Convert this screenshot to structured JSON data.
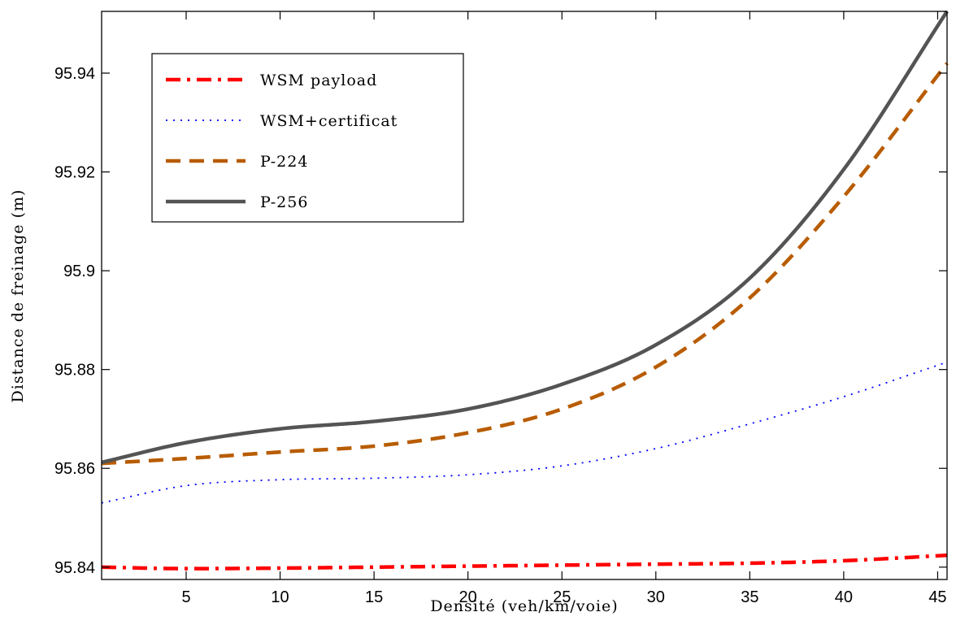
{
  "chart_data": {
    "type": "line",
    "xlabel": "Densité (veh/km/voie)",
    "ylabel": "Distance de freinage (m)",
    "xlim": [
      0.5,
      45.5
    ],
    "ylim": [
      95.8375,
      95.9525
    ],
    "xticks": [
      5,
      10,
      15,
      20,
      25,
      30,
      35,
      40,
      45
    ],
    "yticks": [
      95.84,
      95.86,
      95.88,
      95.9,
      95.92,
      95.94
    ],
    "xtick_labels": [
      "5",
      "10",
      "15",
      "20",
      "25",
      "30",
      "35",
      "40",
      "45"
    ],
    "ytick_labels": [
      "95.84",
      "95.86",
      "95.88",
      "95.9",
      "95.92",
      "95.94"
    ],
    "grid": false,
    "legend_position": "top-left",
    "series": [
      {
        "name": "WSM payload",
        "color": "#ff0000",
        "style": "dashdot",
        "x": [
          0.5,
          5,
          10,
          15,
          20,
          25,
          30,
          35,
          40,
          45.5
        ],
        "y": [
          95.84,
          95.8397,
          95.8398,
          95.84,
          95.8402,
          95.8404,
          95.8406,
          95.8408,
          95.8413,
          95.8424
        ]
      },
      {
        "name": "WSM+certificat",
        "color": "#0000ff",
        "style": "dotted",
        "x": [
          0.5,
          5,
          10,
          15,
          20,
          25,
          30,
          35,
          40,
          45.5
        ],
        "y": [
          95.853,
          95.8565,
          95.8577,
          95.858,
          95.8587,
          95.8605,
          95.864,
          95.869,
          95.8745,
          95.8815
        ]
      },
      {
        "name": "P-224",
        "color": "#b85c00",
        "style": "dashed",
        "x": [
          0.5,
          5,
          10,
          15,
          20,
          25,
          30,
          35,
          40,
          45.5
        ],
        "y": [
          95.861,
          95.862,
          95.8633,
          95.8645,
          95.8672,
          95.872,
          95.8805,
          95.8945,
          95.915,
          95.942
        ]
      },
      {
        "name": "P-256",
        "color": "#545454",
        "style": "solid",
        "x": [
          0.5,
          5,
          10,
          15,
          20,
          25,
          30,
          35,
          40,
          45.5
        ],
        "y": [
          95.8612,
          95.8652,
          95.868,
          95.8695,
          95.872,
          95.877,
          95.885,
          95.8985,
          95.9205,
          95.9525
        ]
      }
    ]
  }
}
